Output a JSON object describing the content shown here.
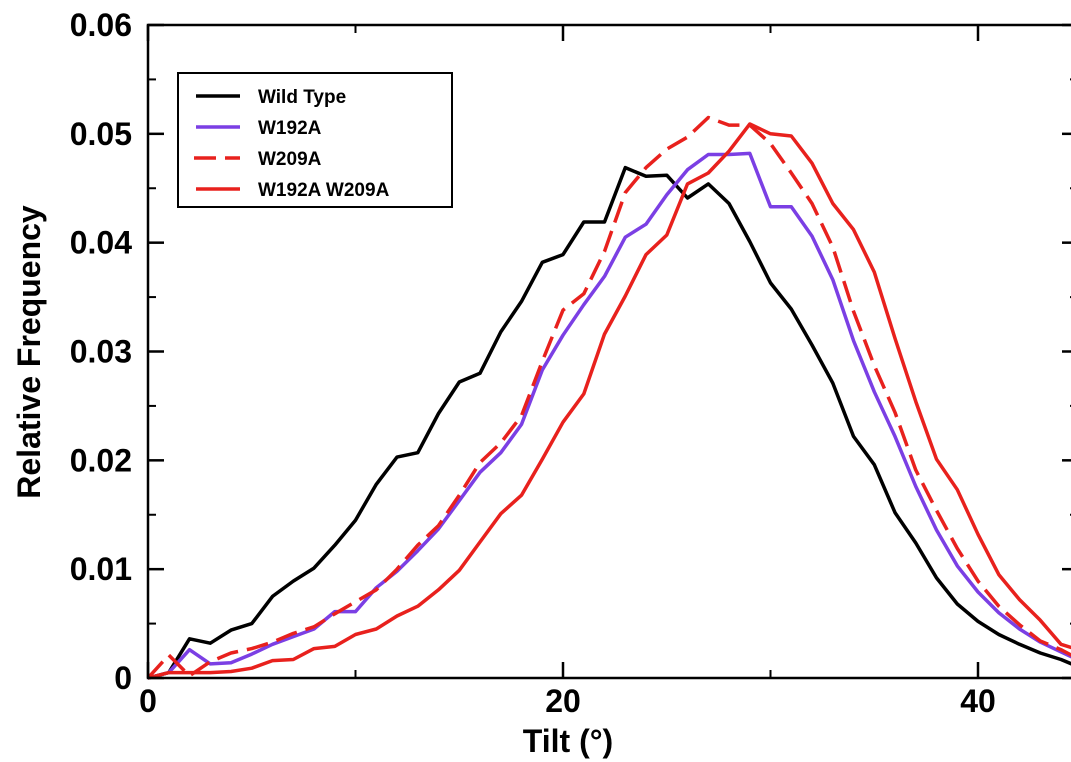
{
  "chart_data": {
    "type": "line",
    "xlabel": "Tilt (°)",
    "ylabel": "Relative Frequency",
    "xlim": [
      0,
      45
    ],
    "ylim": [
      0,
      0.06
    ],
    "x_ticks": [
      0,
      20,
      40
    ],
    "x_tick_labels": [
      "0",
      "20",
      "40"
    ],
    "y_ticks": [
      0,
      0.01,
      0.02,
      0.03,
      0.04,
      0.05,
      0.06
    ],
    "y_tick_labels": [
      "0",
      "0.01",
      "0.02",
      "0.03",
      "0.04",
      "0.05",
      "0.06"
    ],
    "grid": false,
    "legend_position": "top-left",
    "series": [
      {
        "name": "Wild Type",
        "color": "#000000",
        "dash": "solid",
        "x": [
          0,
          1,
          2,
          3,
          4,
          5,
          6,
          7,
          8,
          9,
          10,
          11,
          12,
          13,
          14,
          15,
          16,
          17,
          18,
          19,
          20,
          21,
          22,
          23,
          24,
          25,
          26,
          27,
          28,
          29,
          30,
          31,
          32,
          33,
          34,
          35,
          36,
          37,
          38,
          39,
          40,
          41,
          42,
          43,
          44,
          45
        ],
        "y": [
          0,
          0.0005,
          0.0036,
          0.0032,
          0.0044,
          0.005,
          0.0075,
          0.0089,
          0.0101,
          0.0122,
          0.0145,
          0.0178,
          0.0203,
          0.0207,
          0.0243,
          0.0272,
          0.028,
          0.0318,
          0.0346,
          0.0382,
          0.0389,
          0.0419,
          0.0419,
          0.0469,
          0.0461,
          0.0462,
          0.0441,
          0.0454,
          0.0436,
          0.0401,
          0.0363,
          0.0339,
          0.0306,
          0.0271,
          0.0222,
          0.0196,
          0.0152,
          0.0124,
          0.0092,
          0.0068,
          0.0052,
          0.004,
          0.0031,
          0.0023,
          0.0017,
          0.0009
        ]
      },
      {
        "name": "W192A",
        "color": "#7b3fe4",
        "dash": "solid",
        "x": [
          0,
          1,
          2,
          3,
          4,
          5,
          6,
          7,
          8,
          9,
          10,
          11,
          12,
          13,
          14,
          15,
          16,
          17,
          18,
          19,
          20,
          21,
          22,
          23,
          24,
          25,
          26,
          27,
          28,
          29,
          30,
          31,
          32,
          33,
          34,
          35,
          36,
          37,
          38,
          39,
          40,
          41,
          42,
          43,
          44,
          45
        ],
        "y": [
          0,
          0.0005,
          0.0026,
          0.0013,
          0.0014,
          0.0022,
          0.0031,
          0.0038,
          0.0045,
          0.0061,
          0.0061,
          0.0083,
          0.0098,
          0.0117,
          0.0137,
          0.0163,
          0.0189,
          0.0207,
          0.0233,
          0.0283,
          0.0315,
          0.0343,
          0.0369,
          0.0405,
          0.0417,
          0.0444,
          0.0467,
          0.0481,
          0.0481,
          0.0482,
          0.0433,
          0.0433,
          0.0406,
          0.0366,
          0.031,
          0.0263,
          0.0222,
          0.0176,
          0.0136,
          0.0103,
          0.0079,
          0.006,
          0.0045,
          0.0033,
          0.0024,
          0.0015
        ]
      },
      {
        "name": "W209A",
        "color": "#e8211d",
        "dash": "dashed",
        "x": [
          0,
          1,
          2,
          3,
          4,
          5,
          6,
          7,
          8,
          9,
          10,
          11,
          12,
          13,
          14,
          15,
          16,
          17,
          18,
          19,
          20,
          21,
          22,
          23,
          24,
          25,
          26,
          27,
          28,
          29,
          30,
          31,
          32,
          33,
          34,
          35,
          36,
          37,
          38,
          39,
          40,
          41,
          42,
          43,
          44,
          45
        ],
        "y": [
          0,
          0.0021,
          0.0002,
          0.0015,
          0.0023,
          0.0027,
          0.0033,
          0.0041,
          0.0047,
          0.0059,
          0.007,
          0.0081,
          0.01,
          0.0122,
          0.014,
          0.0168,
          0.0198,
          0.0216,
          0.0241,
          0.0291,
          0.0338,
          0.0353,
          0.0392,
          0.0446,
          0.0469,
          0.0486,
          0.0497,
          0.0515,
          0.0508,
          0.0508,
          0.0491,
          0.0464,
          0.0436,
          0.0396,
          0.0337,
          0.0287,
          0.0244,
          0.0191,
          0.0154,
          0.0119,
          0.0089,
          0.0066,
          0.0049,
          0.0034,
          0.0026,
          0.0016
        ]
      },
      {
        "name": "W192A W209A",
        "color": "#e8211d",
        "dash": "solid",
        "x": [
          0,
          1,
          2,
          3,
          4,
          5,
          6,
          7,
          8,
          9,
          10,
          11,
          12,
          13,
          14,
          15,
          16,
          17,
          18,
          19,
          20,
          21,
          22,
          23,
          24,
          25,
          26,
          27,
          28,
          29,
          30,
          31,
          32,
          33,
          34,
          35,
          36,
          37,
          38,
          39,
          40,
          41,
          42,
          43,
          44,
          45
        ],
        "y": [
          0,
          0.0005,
          0.0005,
          0.0005,
          0.0006,
          0.0009,
          0.0016,
          0.0017,
          0.0027,
          0.0029,
          0.004,
          0.0045,
          0.0057,
          0.0066,
          0.0081,
          0.0099,
          0.0125,
          0.0151,
          0.0168,
          0.0201,
          0.0235,
          0.0261,
          0.0316,
          0.0351,
          0.0389,
          0.0407,
          0.0454,
          0.0464,
          0.0484,
          0.0509,
          0.05,
          0.0498,
          0.0473,
          0.0436,
          0.0412,
          0.0373,
          0.0312,
          0.0254,
          0.0201,
          0.0173,
          0.0132,
          0.0095,
          0.0072,
          0.0053,
          0.0031,
          0.0025
        ]
      }
    ]
  }
}
